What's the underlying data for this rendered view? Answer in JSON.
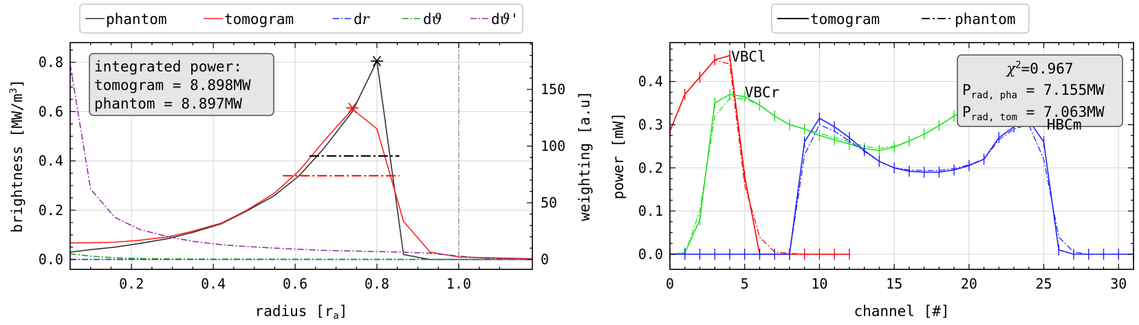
{
  "chart_data": [
    {
      "type": "line",
      "xlabel": "radius [r",
      "xlabel_sub": "a",
      "xlabel_end": "]",
      "ylabel": "brightness [MW/m",
      "ylabel_sup": "3",
      "ylabel_end": "]",
      "y2label": "weighting [a.u]",
      "xlim": [
        0.05,
        1.18
      ],
      "ylim": [
        -0.04,
        0.88
      ],
      "y2lim": [
        -8.7,
        191.3
      ],
      "xticks": [
        0.2,
        0.4,
        0.6,
        0.8,
        1.0
      ],
      "xtick_labels": [
        "0.2",
        "0.4",
        "0.6",
        "0.8",
        "1.0"
      ],
      "yticks": [
        0.0,
        0.2,
        0.4,
        0.6,
        0.8
      ],
      "ytick_labels": [
        "0.0",
        "0.2",
        "0.4",
        "0.6",
        "0.8"
      ],
      "y2ticks": [
        0,
        50,
        100,
        150
      ],
      "y2tick_labels": [
        "0",
        "50",
        "100",
        "150"
      ],
      "grid": true,
      "legend_position": "top-above",
      "legend": [
        {
          "label": "phantom",
          "color": "#333333",
          "dash": "solid"
        },
        {
          "label": "tomogram",
          "color": "#ff2020",
          "dash": "solid"
        },
        {
          "label": "d",
          "label_em": "r",
          "color": "#2020ff",
          "dash": "dashdot"
        },
        {
          "label": "d",
          "label_em": "ϑ",
          "color": "#20a020",
          "dash": "dashdot"
        },
        {
          "label": "d",
          "label_em": "ϑ",
          "label_end": "'",
          "color": "#9030a0",
          "dash": "dashdot"
        }
      ],
      "annotation_box": {
        "lines": [
          "integrated power:",
          "tomogram = 8.898MW",
          "phantom = 8.897MW"
        ]
      },
      "series": [
        {
          "name": "phantom",
          "color": "#333333",
          "axis": "left",
          "x": [
            0.05,
            0.1,
            0.16,
            0.22,
            0.29,
            0.35,
            0.42,
            0.48,
            0.55,
            0.61,
            0.67,
            0.74,
            0.8,
            0.865,
            0.93,
            1.0,
            1.18
          ],
          "y": [
            0.03,
            0.04,
            0.05,
            0.065,
            0.085,
            0.11,
            0.145,
            0.195,
            0.26,
            0.34,
            0.45,
            0.6,
            0.805,
            0.02,
            0.0,
            0.0,
            0.0
          ]
        },
        {
          "name": "tomogram",
          "color": "#ff2020",
          "axis": "left",
          "x": [
            0.05,
            0.1,
            0.16,
            0.22,
            0.29,
            0.35,
            0.42,
            0.48,
            0.55,
            0.61,
            0.67,
            0.74,
            0.8,
            0.865,
            0.93,
            1.0,
            1.18
          ],
          "y": [
            0.067,
            0.068,
            0.07,
            0.078,
            0.092,
            0.115,
            0.148,
            0.198,
            0.27,
            0.36,
            0.48,
            0.61,
            0.53,
            0.155,
            0.03,
            0.01,
            0.003
          ]
        },
        {
          "name": "dr",
          "color": "#2020ff",
          "axis": "right",
          "dash": "dashdot",
          "x": [
            0.05,
            1.18
          ],
          "y": [
            0.0,
            0.0
          ]
        },
        {
          "name": "dϑ",
          "color": "#20a020",
          "axis": "right",
          "dash": "dashdot",
          "x": [
            0.05,
            0.1,
            0.16,
            0.22,
            0.35,
            0.5,
            0.7,
            0.9,
            1.0,
            1.18
          ],
          "y": [
            5,
            3,
            1.5,
            0.8,
            0.4,
            0.3,
            0.2,
            0.1,
            0.05,
            0.0
          ]
        },
        {
          "name": "dϑ'",
          "color": "#9030a0",
          "axis": "right",
          "dash": "dashdot",
          "x": [
            0.05,
            0.1,
            0.16,
            0.22,
            0.29,
            0.35,
            0.42,
            0.48,
            0.55,
            0.61,
            0.67,
            0.74,
            0.8,
            0.865,
            0.93,
            1.0,
            1.06,
            1.12,
            1.18
          ],
          "y": [
            172,
            62,
            37,
            26.5,
            20,
            16,
            13,
            11.5,
            10,
            9,
            8,
            7.5,
            7,
            6.5,
            5.5,
            3,
            1.2,
            0.5,
            0.2
          ]
        }
      ],
      "markers": [
        {
          "x": 0.8,
          "y": 0.805,
          "color": "#000000"
        },
        {
          "x": 0.74,
          "y": 0.615,
          "color": "#ff0000"
        }
      ],
      "hlines": [
        {
          "y": 0.42,
          "x0": 0.635,
          "x1": 0.855,
          "color": "#000000"
        },
        {
          "y": 0.34,
          "x0": 0.57,
          "x1": 0.855,
          "color": "#ff0000"
        }
      ],
      "vline": {
        "x": 1.0,
        "color": "#888888"
      }
    },
    {
      "type": "line",
      "xlabel": "channel [#]",
      "ylabel": "power [mW]",
      "xlim": [
        0,
        31
      ],
      "ylim": [
        -0.035,
        0.49
      ],
      "xticks": [
        0,
        5,
        10,
        15,
        20,
        25,
        30
      ],
      "xtick_labels": [
        "0",
        "5",
        "10",
        "15",
        "20",
        "25",
        "30"
      ],
      "yticks": [
        0.0,
        0.1,
        0.2,
        0.3,
        0.4
      ],
      "ytick_labels": [
        "0.0",
        "0.1",
        "0.2",
        "0.3",
        "0.4"
      ],
      "grid": true,
      "legend_position": "top-above",
      "legend": [
        {
          "label": "tomogram",
          "dash": "solid"
        },
        {
          "label": "phantom",
          "dash": "dashdot"
        }
      ],
      "annotation_box": {
        "chi_prefix": "χ",
        "chi_sup": "2",
        "chi_value": "=0.967",
        "p1_main": "P",
        "p1_sub": "rad, pha",
        "p1_value": " = 7.155MW",
        "p2_main": "P",
        "p2_sub": "rad, tom",
        "p2_value": " = 7.063MW"
      },
      "camera_labels": [
        {
          "text": "VBCl",
          "color": "#ff0000",
          "x": 4.1,
          "y": 0.457
        },
        {
          "text": "VBCr",
          "color": "#20e020",
          "x": 5.0,
          "y": 0.375
        },
        {
          "text": "HBCm",
          "color": "#4040ff",
          "x": 25.2,
          "y": 0.3
        }
      ],
      "series": [
        {
          "name": "VBCl",
          "color": "#ff0000",
          "x": [
            0,
            1,
            2,
            3,
            4,
            5,
            6,
            7,
            8,
            9,
            10,
            11,
            12
          ],
          "tomogram": [
            0.285,
            0.37,
            0.41,
            0.45,
            0.46,
            0.18,
            0.0,
            0.0,
            0.0,
            0.0,
            0.0,
            0.0,
            0.0
          ],
          "phantom": [
            0.285,
            0.37,
            0.41,
            0.45,
            0.44,
            0.16,
            0.04,
            0.005,
            0.002,
            0.0,
            0.0,
            0.0,
            0.0
          ]
        },
        {
          "name": "VBCr",
          "color": "#20e020",
          "x": [
            0,
            1,
            2,
            3,
            4,
            5,
            6,
            7,
            8,
            9,
            10,
            11,
            12,
            13,
            14,
            15,
            16,
            17,
            18,
            19,
            20,
            21
          ],
          "tomogram": [
            0.0,
            0.003,
            0.08,
            0.35,
            0.37,
            0.365,
            0.345,
            0.32,
            0.3,
            0.29,
            0.275,
            0.265,
            0.255,
            0.245,
            0.24,
            0.248,
            0.262,
            0.278,
            0.298,
            0.32,
            0.34,
            0.34
          ],
          "phantom": [
            0.0,
            0.0,
            0.1,
            0.32,
            0.36,
            0.36,
            0.345,
            0.32,
            0.3,
            0.29,
            0.28,
            0.27,
            0.26,
            0.25,
            0.245,
            0.25,
            0.262,
            0.278,
            0.298,
            0.32,
            0.34,
            0.34
          ]
        },
        {
          "name": "HBCm",
          "color": "#2020ff",
          "x": [
            0,
            1,
            2,
            3,
            4,
            5,
            6,
            7,
            8,
            9,
            10,
            11,
            12,
            13,
            14,
            15,
            16,
            17,
            18,
            19,
            20,
            21,
            22,
            23,
            24,
            25,
            26,
            27,
            28,
            29,
            30,
            31
          ],
          "tomogram": [
            0.0,
            0.0,
            0.0,
            0.0,
            0.0,
            0.0,
            0.0,
            0.0,
            0.0,
            0.26,
            0.315,
            0.295,
            0.27,
            0.24,
            0.215,
            0.2,
            0.192,
            0.19,
            0.19,
            0.195,
            0.205,
            0.22,
            0.27,
            0.295,
            0.31,
            0.26,
            0.01,
            0.0,
            0.0,
            0.0,
            0.0,
            0.0
          ],
          "phantom": [
            0.0,
            0.0,
            0.0,
            0.0,
            0.0,
            0.0,
            0.0,
            0.0,
            0.0,
            0.23,
            0.3,
            0.285,
            0.262,
            0.238,
            0.215,
            0.2,
            0.195,
            0.194,
            0.194,
            0.198,
            0.207,
            0.22,
            0.265,
            0.29,
            0.3,
            0.22,
            0.04,
            0.005,
            0.0,
            0.0,
            0.0,
            0.0
          ]
        }
      ]
    }
  ]
}
